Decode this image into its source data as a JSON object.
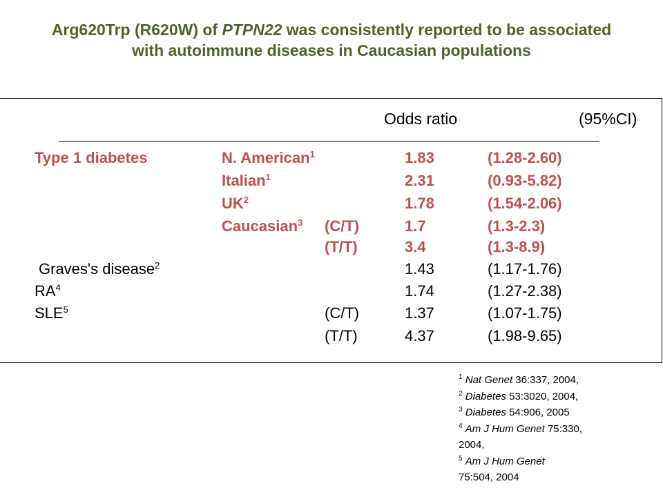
{
  "title": {
    "part1": "Arg620Trp (R620W) of ",
    "gene": "PTPN22",
    "part2": " was consistently reported to be associated",
    "line2": "with autoimmune diseases in Caucasian populations"
  },
  "table": {
    "header_or": "Odds ratio",
    "header_ci": "(95%CI)",
    "rows": [
      {
        "disease": "Type 1 diabetes",
        "disease_sup": "",
        "pop": "N. American",
        "pop_sup": "1",
        "geno": "",
        "or": "1.83",
        "ci": "(1.28-2.60)",
        "highlight": true
      },
      {
        "disease": "",
        "disease_sup": "",
        "pop": "Italian",
        "pop_sup": "1",
        "geno": "",
        "or": "2.31",
        "ci": "(0.93-5.82)",
        "highlight": true
      },
      {
        "disease": "",
        "disease_sup": "",
        "pop": "UK",
        "pop_sup": "2",
        "geno": "",
        "or": "1.78",
        "ci": "(1.54-2.06)",
        "highlight": true
      },
      {
        "disease": "",
        "disease_sup": "",
        "pop": "Caucasian",
        "pop_sup": "3",
        "geno": "(C/T)",
        "or": "1.7",
        "ci": "(1.3-2.3)",
        "highlight": true
      },
      {
        "disease": "",
        "disease_sup": "",
        "pop": "",
        "pop_sup": "",
        "geno": "(T/T)",
        "or": "3.4",
        "ci": "(1.3-8.9)",
        "highlight": true
      },
      {
        "disease": "Graves's disease",
        "disease_sup": "2",
        "pop": "",
        "pop_sup": "",
        "geno": "",
        "or": "1.43",
        "ci": "(1.17-1.76)",
        "highlight": false
      },
      {
        "disease": "RA",
        "disease_sup": "4",
        "pop": "",
        "pop_sup": "",
        "geno": "",
        "or": "1.74",
        "ci": "(1.27-2.38)",
        "highlight": false
      },
      {
        "disease": "SLE",
        "disease_sup": "5",
        "pop": "",
        "pop_sup": "",
        "geno": "(C/T)",
        "or": "1.37",
        "ci": "(1.07-1.75)",
        "highlight": false
      },
      {
        "disease": "",
        "disease_sup": "",
        "pop": "",
        "pop_sup": "",
        "geno": "(T/T)",
        "or": "4.37",
        "ci": "(1.98-9.65)",
        "highlight": false
      }
    ]
  },
  "references": [
    {
      "num": "1",
      "journal": "Nat Genet",
      "cite": " 36:337, 2004,"
    },
    {
      "num": "2",
      "journal": "Diabetes",
      "cite": " 53:3020, 2004,"
    },
    {
      "num": "3",
      "journal": "Diabetes",
      "cite": " 54:906, 2005"
    },
    {
      "num": "4",
      "journal": "Am J Hum Genet",
      "cite": " 75:330,",
      "cont": "2004,"
    },
    {
      "num": "5",
      "journal": "Am J Hum Genet",
      "cite": "",
      "cont": "75:504, 2004"
    }
  ],
  "colors": {
    "title": "#4f6228",
    "highlight": "#c0504d",
    "text": "#000000"
  }
}
